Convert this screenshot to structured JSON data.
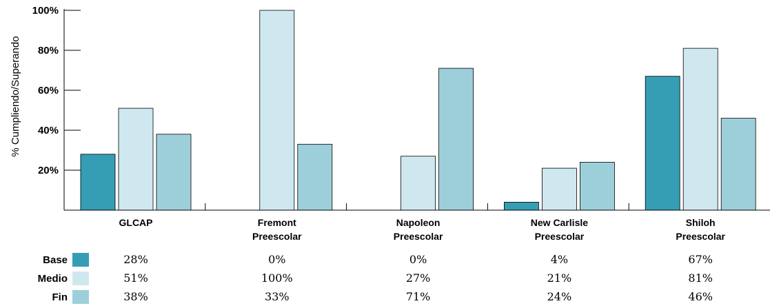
{
  "chart_data": {
    "type": "bar",
    "ylabel": "% Cumpliendo/Superando",
    "ylim": [
      0,
      100
    ],
    "yticks": [
      {
        "value": 20,
        "label": "20%"
      },
      {
        "value": 40,
        "label": "40%"
      },
      {
        "value": 60,
        "label": "60%"
      },
      {
        "value": 80,
        "label": "80%"
      },
      {
        "value": 100,
        "label": "100%"
      }
    ],
    "categories": [
      [
        "GLCAP"
      ],
      [
        "Fremont",
        "Preescolar"
      ],
      [
        "Napoleon",
        "Preescolar"
      ],
      [
        "New Carlisle",
        "Preescolar"
      ],
      [
        "Shiloh",
        "Preescolar"
      ]
    ],
    "series": [
      {
        "name": "Base",
        "color": "#359db4",
        "values": [
          28,
          0,
          0,
          4,
          67
        ],
        "labels": [
          "28%",
          "0%",
          "0%",
          "4%",
          "67%"
        ]
      },
      {
        "name": "Medio",
        "color": "#cfe8ef",
        "values": [
          51,
          100,
          27,
          21,
          81
        ],
        "labels": [
          "51%",
          "100%",
          "27%",
          "21%",
          "81%"
        ]
      },
      {
        "name": "Fin",
        "color": "#9dcfdb",
        "values": [
          38,
          33,
          71,
          24,
          46
        ],
        "labels": [
          "38%",
          "33%",
          "71%",
          "24%",
          "46%"
        ]
      }
    ],
    "data_table": true,
    "grid": false
  }
}
